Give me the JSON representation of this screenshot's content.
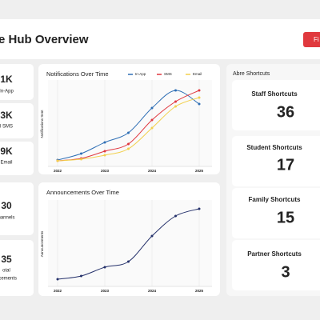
{
  "header": {
    "title": "e Hub Overview",
    "button": "Fi"
  },
  "stats": [
    {
      "value": "1K",
      "label": "In-App"
    },
    {
      "value": "3K",
      "label": "l SMS"
    },
    {
      "value": "9K",
      "label": "Email"
    },
    {
      "value": "30",
      "label": "hannels"
    },
    {
      "value": "35",
      "label": "otal",
      "label2": "ncements"
    }
  ],
  "chart_data": [
    {
      "type": "line",
      "title": "Notifications Over Time",
      "ylabel": "Notifications Sent",
      "x": [
        2022,
        2022.5,
        2023,
        2023.5,
        2024,
        2024.5,
        2025
      ],
      "xlim": [
        2022,
        2025
      ],
      "xticks": [
        2022,
        2023,
        2024,
        2025
      ],
      "ylim": [
        0,
        100
      ],
      "grid": true,
      "series": [
        {
          "name": "In-App",
          "color": "#2f6fb5",
          "values": [
            5,
            13,
            27,
            39,
            70,
            92,
            75
          ]
        },
        {
          "name": "SMS",
          "color": "#e0373f",
          "values": [
            4,
            7,
            16,
            25,
            55,
            78,
            92
          ]
        },
        {
          "name": "Email",
          "color": "#f2d04e",
          "values": [
            4,
            6,
            11,
            19,
            45,
            72,
            83
          ]
        }
      ]
    },
    {
      "type": "line",
      "title": "Announcements Over Time",
      "ylabel": "Announcements",
      "x": [
        2022,
        2022.5,
        2023,
        2023.5,
        2024,
        2024.5,
        2025
      ],
      "xlim": [
        2022,
        2025
      ],
      "xticks": [
        2022,
        2023,
        2024,
        2025
      ],
      "ylim": [
        0,
        100
      ],
      "grid": true,
      "series": [
        {
          "color": "#25316b",
          "values": [
            6,
            10,
            21,
            28,
            60,
            85,
            94
          ]
        }
      ]
    }
  ],
  "shortcuts": {
    "title": "Abre Shortcuts",
    "items": [
      {
        "label": "Staff Shortcuts",
        "value": "36"
      },
      {
        "label": "Student Shortcuts",
        "value": "17"
      },
      {
        "label": "Family Shortcuts",
        "value": "15"
      },
      {
        "label": "Partner Shortcuts",
        "value": "3"
      }
    ]
  }
}
